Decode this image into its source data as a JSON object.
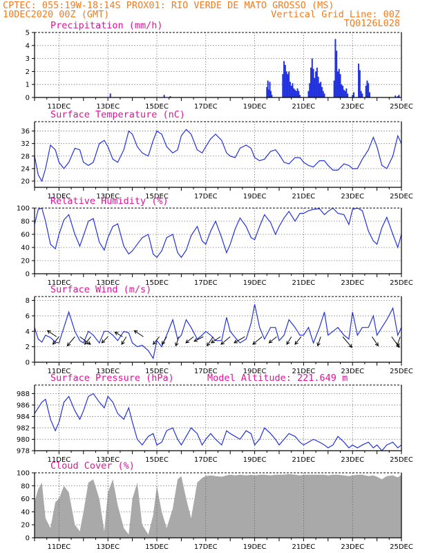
{
  "header": {
    "line1": "CPTEC:  055:19W-18:14S  PROX01: RIO VERDE DE MATO GROSSO (MS)",
    "line2_left": "10DEC2020 00Z (GMT)",
    "line2_right": "Vertical Grid Line: 00Z",
    "line3_right": "TQ0126L028"
  },
  "x_ticks": [
    "11DEC",
    "13DEC",
    "15DEC",
    "17DEC",
    "19DEC",
    "21DEC",
    "23DEC",
    "25DEC"
  ],
  "colors": {
    "header": "#f07c22",
    "title": "#e0129a",
    "series": "#2233dd",
    "cloud": "#a9a9a9"
  },
  "chart_data": [
    {
      "id": "precip",
      "type": "bar",
      "title": "Precipitation (mm/h)",
      "x_range_days": [
        0,
        15
      ],
      "ylim": [
        0,
        5
      ],
      "yticks": [
        0,
        1,
        2,
        3,
        4,
        5
      ],
      "x": [
        3.1,
        5.3,
        5.55,
        9.5,
        9.54,
        9.58,
        9.62,
        9.66,
        9.7,
        10.15,
        10.2,
        10.25,
        10.3,
        10.35,
        10.4,
        10.45,
        10.5,
        10.55,
        10.6,
        10.65,
        10.7,
        10.75,
        10.8,
        10.85,
        11.2,
        11.25,
        11.3,
        11.35,
        11.4,
        11.45,
        11.5,
        11.55,
        11.6,
        11.65,
        11.7,
        11.75,
        11.8,
        11.85,
        12.25,
        12.3,
        12.35,
        12.4,
        12.45,
        12.5,
        12.55,
        12.6,
        12.65,
        12.7,
        12.75,
        12.8,
        13.0,
        13.05,
        13.25,
        13.3,
        13.35,
        13.4,
        13.55,
        13.6,
        13.65,
        13.7,
        14.75,
        14.85,
        14.9
      ],
      "values": [
        0.3,
        0.2,
        0.1,
        0.8,
        1.3,
        0.6,
        1.2,
        0.5,
        0.2,
        1.8,
        2.8,
        2.5,
        2.0,
        1.8,
        2.0,
        1.2,
        0.9,
        1.1,
        0.7,
        0.6,
        0.5,
        0.7,
        0.5,
        0.2,
        0.5,
        1.1,
        2.3,
        3.0,
        2.2,
        1.5,
        2.0,
        2.3,
        1.6,
        1.1,
        1.2,
        0.8,
        0.5,
        0.3,
        1.3,
        4.5,
        3.6,
        2.0,
        2.2,
        1.8,
        1.0,
        0.9,
        0.6,
        0.5,
        0.7,
        0.3,
        0.2,
        0.4,
        2.6,
        2.1,
        0.5,
        0.3,
        0.9,
        1.3,
        1.1,
        0.4,
        0.15,
        0.1,
        0.2
      ]
    },
    {
      "id": "temp",
      "type": "line",
      "title": "Surface Temperature (nC)",
      "x_range_days": [
        0,
        15
      ],
      "ylim": [
        18,
        39
      ],
      "yticks": [
        20,
        24,
        28,
        32,
        36
      ],
      "x": [
        0,
        0.15,
        0.3,
        0.45,
        0.65,
        0.85,
        1.0,
        1.2,
        1.4,
        1.65,
        1.85,
        2.0,
        2.2,
        2.4,
        2.65,
        2.85,
        3.0,
        3.2,
        3.4,
        3.65,
        3.85,
        4.0,
        4.2,
        4.4,
        4.65,
        4.85,
        5.0,
        5.2,
        5.4,
        5.65,
        5.85,
        6.0,
        6.2,
        6.4,
        6.65,
        6.85,
        7.0,
        7.2,
        7.4,
        7.65,
        7.85,
        8.0,
        8.2,
        8.4,
        8.65,
        8.85,
        9.0,
        9.2,
        9.4,
        9.65,
        9.85,
        10.0,
        10.2,
        10.4,
        10.65,
        10.85,
        11.0,
        11.2,
        11.4,
        11.65,
        11.85,
        12.0,
        12.2,
        12.4,
        12.65,
        12.85,
        13.0,
        13.2,
        13.4,
        13.65,
        13.85,
        14.0,
        14.2,
        14.4,
        14.65,
        14.85,
        15.0
      ],
      "values": [
        28,
        22,
        20,
        24,
        31.5,
        30,
        26,
        24,
        26,
        30.5,
        30,
        26,
        25,
        26,
        32,
        33,
        31,
        27,
        26,
        30,
        36,
        35,
        31,
        29,
        28,
        33,
        36,
        35,
        31,
        29,
        30,
        34.5,
        36.5,
        35,
        30,
        29,
        31,
        33.5,
        35,
        33,
        29,
        28,
        27.5,
        30.5,
        31.5,
        30.5,
        27.5,
        26.5,
        27,
        29.5,
        30,
        28.5,
        26,
        25.5,
        27.5,
        27.5,
        26,
        25,
        24.5,
        26.5,
        26.5,
        25,
        23.5,
        23.5,
        25.5,
        25,
        24,
        24,
        27,
        30,
        34,
        31,
        25,
        24,
        28,
        34.5,
        32
      ]
    },
    {
      "id": "rh",
      "type": "line",
      "title": "Relative Humidity (%)",
      "x_range_days": [
        0,
        15
      ],
      "ylim": [
        0,
        100
      ],
      "yticks": [
        0,
        20,
        40,
        60,
        80,
        100
      ],
      "x": [
        0,
        0.15,
        0.3,
        0.45,
        0.65,
        0.85,
        1.0,
        1.2,
        1.4,
        1.65,
        1.85,
        2.0,
        2.2,
        2.4,
        2.65,
        2.85,
        3.0,
        3.2,
        3.4,
        3.65,
        3.85,
        4.0,
        4.2,
        4.4,
        4.65,
        4.85,
        5.0,
        5.2,
        5.4,
        5.65,
        5.85,
        6.0,
        6.2,
        6.4,
        6.65,
        6.85,
        7.0,
        7.2,
        7.4,
        7.65,
        7.85,
        8.0,
        8.2,
        8.4,
        8.65,
        8.85,
        9.0,
        9.2,
        9.4,
        9.65,
        9.85,
        10.0,
        10.2,
        10.4,
        10.65,
        10.85,
        11.0,
        11.2,
        11.4,
        11.65,
        11.85,
        12.0,
        12.2,
        12.4,
        12.65,
        12.85,
        13.0,
        13.2,
        13.4,
        13.65,
        13.85,
        14.0,
        14.2,
        14.4,
        14.65,
        14.85,
        15.0
      ],
      "values": [
        75,
        98,
        100,
        80,
        45,
        38,
        60,
        82,
        90,
        60,
        42,
        58,
        80,
        84,
        48,
        36,
        55,
        72,
        76,
        42,
        30,
        35,
        45,
        55,
        60,
        30,
        25,
        35,
        55,
        60,
        32,
        25,
        36,
        58,
        72,
        50,
        45,
        65,
        80,
        55,
        32,
        45,
        68,
        85,
        72,
        55,
        52,
        72,
        90,
        78,
        60,
        72,
        85,
        95,
        80,
        92,
        92,
        96,
        98,
        99,
        90,
        95,
        100,
        92,
        90,
        75,
        98,
        100,
        96,
        65,
        50,
        45,
        70,
        86,
        60,
        40,
        60
      ]
    },
    {
      "id": "wind",
      "type": "line",
      "title": "Surface Wind (m/s)",
      "x_range_days": [
        0,
        15
      ],
      "ylim": [
        0,
        8.5
      ],
      "yticks": [
        0,
        2,
        4,
        6,
        8
      ],
      "x": [
        0,
        0.15,
        0.3,
        0.45,
        0.65,
        0.85,
        1.0,
        1.2,
        1.4,
        1.65,
        1.85,
        2.0,
        2.2,
        2.4,
        2.65,
        2.85,
        3.0,
        3.2,
        3.4,
        3.65,
        3.85,
        4.0,
        4.2,
        4.4,
        4.65,
        4.85,
        5.0,
        5.2,
        5.4,
        5.65,
        5.85,
        6.0,
        6.2,
        6.4,
        6.65,
        6.85,
        7.0,
        7.2,
        7.4,
        7.65,
        7.85,
        8.0,
        8.2,
        8.4,
        8.65,
        8.85,
        9.0,
        9.2,
        9.4,
        9.65,
        9.85,
        10.0,
        10.2,
        10.4,
        10.65,
        10.85,
        11.0,
        11.2,
        11.4,
        11.65,
        11.85,
        12.0,
        12.2,
        12.4,
        12.65,
        12.85,
        13.0,
        13.2,
        13.4,
        13.65,
        13.85,
        14.0,
        14.2,
        14.4,
        14.65,
        14.85,
        15.0
      ],
      "values": [
        4.5,
        3.0,
        2.6,
        3.5,
        3.2,
        2.6,
        2.5,
        4.5,
        6.5,
        4.0,
        2.8,
        2.5,
        4.0,
        3.5,
        2.5,
        4.0,
        4.0,
        3.5,
        2.8,
        4.0,
        3.8,
        2.5,
        2.0,
        2.2,
        1.5,
        0.5,
        2.8,
        2.0,
        3.5,
        5.5,
        3.0,
        3.5,
        5.5,
        4.5,
        3.0,
        3.5,
        4.0,
        3.5,
        2.8,
        2.8,
        5.8,
        4.0,
        3.2,
        2.5,
        3.0,
        5.0,
        7.5,
        4.5,
        3.0,
        4.5,
        4.5,
        2.8,
        3.5,
        5.5,
        4.5,
        3.5,
        3.5,
        4.5,
        2.5,
        4.5,
        6.5,
        3.5,
        4.0,
        4.5,
        3.5,
        3.0,
        6.5,
        3.5,
        4.5,
        4.5,
        6.0,
        3.5,
        4.5,
        5.5,
        7.0,
        3.5,
        4.5
      ]
    },
    {
      "id": "pres",
      "type": "line",
      "title": "Surface Pressure (hPa)",
      "annotation": "Model Altitude: 221.649 m",
      "x_range_days": [
        0,
        15
      ],
      "ylim": [
        978,
        989.5
      ],
      "yticks": [
        978,
        980,
        982,
        984,
        986,
        988
      ],
      "x": [
        0,
        0.15,
        0.3,
        0.45,
        0.65,
        0.85,
        1.0,
        1.2,
        1.4,
        1.65,
        1.85,
        2.0,
        2.2,
        2.4,
        2.65,
        2.85,
        3.0,
        3.2,
        3.4,
        3.65,
        3.85,
        4.0,
        4.2,
        4.4,
        4.65,
        4.85,
        5.0,
        5.2,
        5.4,
        5.65,
        5.85,
        6.0,
        6.2,
        6.4,
        6.65,
        6.85,
        7.0,
        7.2,
        7.4,
        7.65,
        7.85,
        8.0,
        8.2,
        8.4,
        8.65,
        8.85,
        9.0,
        9.2,
        9.4,
        9.65,
        9.85,
        10.0,
        10.2,
        10.4,
        10.65,
        10.85,
        11.0,
        11.2,
        11.4,
        11.65,
        11.85,
        12.0,
        12.2,
        12.4,
        12.65,
        12.85,
        13.0,
        13.2,
        13.4,
        13.65,
        13.85,
        14.0,
        14.2,
        14.4,
        14.65,
        14.85,
        15.0
      ],
      "values": [
        984.5,
        985.5,
        986.5,
        987.0,
        983.5,
        981.5,
        983.0,
        986.5,
        987.5,
        985.0,
        983.5,
        985.0,
        987.5,
        988.0,
        986.5,
        985.5,
        987.5,
        986.5,
        984.5,
        983.5,
        985.5,
        983.0,
        980.0,
        979.0,
        980.5,
        981.0,
        979.0,
        979.5,
        981.5,
        982.0,
        980.0,
        979.0,
        980.5,
        982.0,
        981.0,
        979.0,
        980.0,
        981.0,
        980.0,
        979.0,
        981.5,
        981.0,
        980.5,
        980.0,
        981.5,
        981.0,
        979.0,
        980.0,
        982.0,
        981.0,
        980.0,
        979.0,
        980.0,
        981.0,
        980.5,
        979.5,
        979.0,
        979.5,
        980.0,
        979.5,
        979.0,
        978.5,
        979.0,
        980.5,
        979.5,
        978.5,
        979.0,
        978.5,
        979.0,
        979.5,
        978.5,
        979.0,
        978.0,
        979.0,
        979.5,
        978.5,
        979.0
      ]
    },
    {
      "id": "cloud",
      "type": "area",
      "title": "Cloud Cover (%)",
      "x_range_days": [
        0,
        15
      ],
      "ylim": [
        0,
        100
      ],
      "yticks": [
        0,
        20,
        40,
        60,
        80,
        100
      ],
      "x": [
        0,
        0.15,
        0.3,
        0.45,
        0.65,
        0.85,
        1.0,
        1.2,
        1.4,
        1.65,
        1.85,
        2.0,
        2.2,
        2.4,
        2.65,
        2.85,
        3.0,
        3.2,
        3.4,
        3.65,
        3.85,
        4.0,
        4.2,
        4.4,
        4.65,
        4.85,
        5.0,
        5.2,
        5.4,
        5.65,
        5.85,
        6.0,
        6.2,
        6.4,
        6.65,
        6.85,
        7.0,
        7.2,
        7.4,
        7.65,
        7.85,
        8.0,
        8.2,
        8.4,
        8.65,
        8.85,
        9.0,
        9.2,
        9.4,
        9.65,
        9.85,
        10.0,
        10.2,
        10.4,
        10.65,
        10.85,
        11.0,
        11.2,
        11.4,
        11.65,
        11.85,
        12.0,
        12.2,
        12.4,
        12.65,
        12.85,
        13.0,
        13.2,
        13.4,
        13.65,
        13.85,
        14.0,
        14.2,
        14.4,
        14.65,
        14.85,
        15.0
      ],
      "values": [
        55,
        75,
        85,
        30,
        15,
        55,
        60,
        80,
        70,
        20,
        10,
        40,
        85,
        90,
        60,
        10,
        70,
        90,
        50,
        15,
        5,
        60,
        85,
        20,
        5,
        35,
        80,
        40,
        15,
        45,
        90,
        95,
        60,
        30,
        85,
        92,
        95,
        96,
        95,
        94,
        96,
        97,
        96,
        97,
        96,
        97,
        96,
        97,
        97,
        96,
        97,
        97,
        97,
        98,
        97,
        96,
        97,
        97,
        97,
        97,
        97,
        96,
        97,
        97,
        96,
        95,
        96,
        97,
        97,
        95,
        96,
        94,
        90,
        95,
        96,
        93,
        97
      ]
    }
  ],
  "wind_arrows": [
    {
      "x": 0.9,
      "dx": -6,
      "dy": -4
    },
    {
      "x": 1.0,
      "dx": -4,
      "dy": 5
    },
    {
      "x": 1.65,
      "dx": -5,
      "dy": 6
    },
    {
      "x": 1.85,
      "dx": 7,
      "dy": 5
    },
    {
      "x": 2.3,
      "dx": -4,
      "dy": 5
    },
    {
      "x": 3.0,
      "dx": -4,
      "dy": 4
    },
    {
      "x": 3.6,
      "dx": -5,
      "dy": -3
    },
    {
      "x": 3.75,
      "dx": -3,
      "dy": 5
    },
    {
      "x": 4.45,
      "dx": -6,
      "dy": -4
    },
    {
      "x": 5.1,
      "dx": -4,
      "dy": 5
    },
    {
      "x": 5.4,
      "dx": -3,
      "dy": 5
    },
    {
      "x": 5.9,
      "dx": -2,
      "dy": 6
    },
    {
      "x": 6.5,
      "dx": -5,
      "dy": 4
    },
    {
      "x": 6.9,
      "dx": -6,
      "dy": 3
    },
    {
      "x": 7.3,
      "dx": -4,
      "dy": 6
    },
    {
      "x": 7.6,
      "dx": -6,
      "dy": 4
    },
    {
      "x": 8.0,
      "dx": -6,
      "dy": 5
    },
    {
      "x": 8.6,
      "dx": -7,
      "dy": 4
    },
    {
      "x": 9.3,
      "dx": -6,
      "dy": 5
    },
    {
      "x": 9.9,
      "dx": -5,
      "dy": 4
    },
    {
      "x": 10.5,
      "dx": -3,
      "dy": 5
    },
    {
      "x": 10.9,
      "dx": -4,
      "dy": 5
    },
    {
      "x": 11.7,
      "dx": -2,
      "dy": 6
    },
    {
      "x": 12.6,
      "dx": 6,
      "dy": 7
    },
    {
      "x": 13.8,
      "dx": 4,
      "dy": 6
    },
    {
      "x": 14.6,
      "dx": 5,
      "dy": 7
    },
    {
      "x": 14.95,
      "dx": -2,
      "dy": 6
    }
  ]
}
